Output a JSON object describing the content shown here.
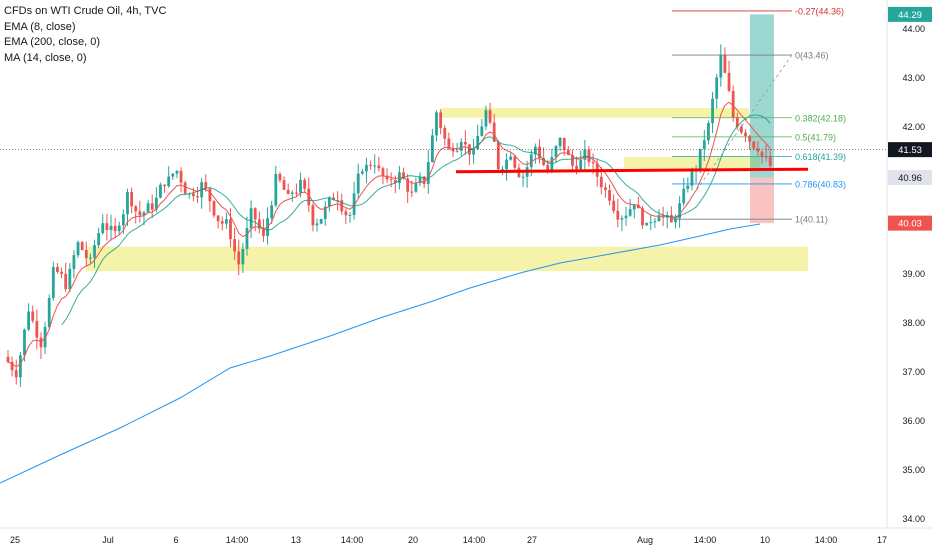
{
  "legend": {
    "title": "CFDs on WTI Crude Oil, 4h, TVC",
    "ema8": "EMA (8, close)",
    "ema200": "EMA (200, close, 0)",
    "ma14": "MA (14, close, 0)"
  },
  "colors": {
    "up": "#26a69a",
    "down": "#ef5350",
    "ema8": "#ef5350",
    "ema200": "#2196f3",
    "zone": "#f0ef8c",
    "support": "#ff0000"
  },
  "chart_data": {
    "type": "candlestick",
    "symbol": "CFDs on WTI Crude Oil",
    "timeframe": "4h",
    "y_axis": {
      "ticks": [
        "44.00",
        "43.00",
        "42.00",
        "41.00",
        "40.00",
        "39.00",
        "38.00",
        "37.00",
        "36.00",
        "35.00",
        "34.00"
      ],
      "range": [
        33.9,
        44.5
      ]
    },
    "x_axis": {
      "ticks": [
        "25",
        "Jul",
        "6",
        "14:00",
        "13",
        "14:00",
        "20",
        "14:00",
        "27",
        "Aug",
        "14:00",
        "10",
        "14:00",
        "17"
      ]
    },
    "price_labels": [
      {
        "value": "44.29",
        "kind": "target"
      },
      {
        "value": "41.53",
        "kind": "last"
      },
      {
        "value": "40.96",
        "kind": "entry"
      },
      {
        "value": "40.03",
        "kind": "stop"
      }
    ],
    "fibonacci": [
      {
        "label": "-0.27(44.36)",
        "price": 44.36
      },
      {
        "label": "0(43.46)",
        "price": 43.46
      },
      {
        "label": "0.382(42.18)",
        "price": 42.18
      },
      {
        "label": "0.5(41.79)",
        "price": 41.79
      },
      {
        "label": "0.618(41.39)",
        "price": 41.39
      },
      {
        "label": "0.786(40.83)",
        "price": 40.83
      },
      {
        "label": "1(40.11)",
        "price": 40.11
      }
    ],
    "zones": [
      {
        "top": 42.38,
        "bottom": 42.18
      },
      {
        "top": 39.55,
        "bottom": 39.05
      },
      {
        "top": 41.38,
        "bottom": 41.15
      }
    ],
    "support_line": 41.1,
    "close_path": [
      37.0,
      38.3,
      37.6,
      39.0,
      38.8,
      39.6,
      39.2,
      40.1,
      39.8,
      40.6,
      40.2,
      40.4,
      40.9,
      41.1,
      40.6,
      40.8,
      40.3,
      40.0,
      39.2,
      40.2,
      39.7,
      40.9,
      40.5,
      40.8,
      40.1,
      40.3,
      40.6,
      40.2,
      41.2,
      41.3,
      40.8,
      41.0,
      40.6,
      40.9,
      42.3,
      41.5,
      41.8,
      41.4,
      42.3,
      41.2,
      41.5,
      41.0,
      41.6,
      41.1,
      41.7,
      41.2,
      41.4,
      41.0,
      40.6,
      40.2,
      40.5,
      39.9,
      40.3,
      40.0,
      40.6,
      41.2,
      42.0,
      43.4,
      42.2,
      41.9,
      41.6,
      41.2
    ]
  }
}
